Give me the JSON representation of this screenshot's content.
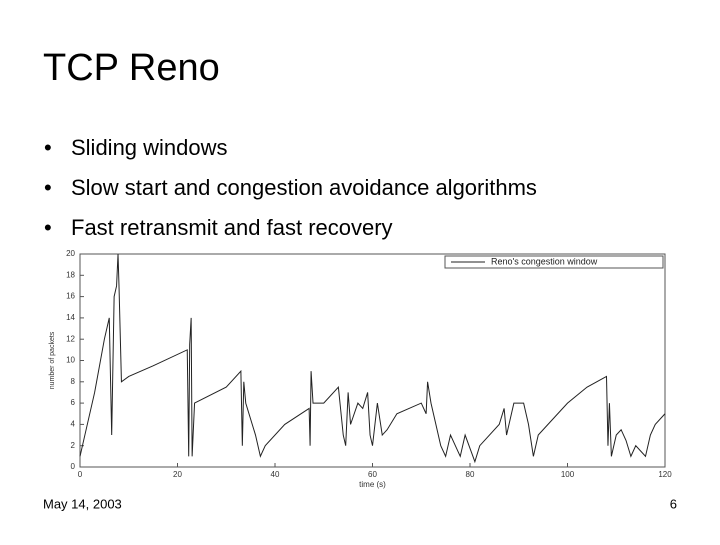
{
  "slide": {
    "title": "TCP Reno",
    "bullets": [
      "Sliding windows",
      "Slow start and congestion avoidance algorithms",
      "Fast retransmit and fast recovery"
    ],
    "footer": {
      "date": "May 14, 2003",
      "page": "6"
    }
  },
  "chart_data": {
    "type": "line",
    "x_label": "time (s)",
    "y_label": "number of packets",
    "xlim": [
      0,
      120
    ],
    "xticks": [
      0,
      20,
      40,
      60,
      80,
      100,
      120
    ],
    "ylim": [
      0,
      20
    ],
    "yticks": [
      0,
      2,
      4,
      6,
      8,
      10,
      12,
      14,
      16,
      18,
      20
    ],
    "legend": "top-right",
    "series": [
      {
        "name": "Reno's congestion window",
        "color": "#222222",
        "x": [
          0,
          1,
          3,
          5,
          6,
          6.5,
          7,
          7.5,
          7.8,
          8,
          8.5,
          10,
          15,
          22,
          22.3,
          22.5,
          22.8,
          23,
          23.5,
          30,
          33,
          33.3,
          33.6,
          34,
          36,
          37,
          38,
          42,
          47,
          47.2,
          47.4,
          47.8,
          50,
          53,
          54,
          54.5,
          55,
          55.5,
          57,
          58,
          59,
          59.5,
          60,
          61,
          62,
          63,
          65,
          70,
          71,
          71.3,
          72,
          73,
          74,
          75,
          76,
          77.5,
          78,
          79,
          81,
          82,
          86,
          87,
          87.5,
          89,
          91,
          92,
          93,
          94,
          96,
          100,
          104,
          108,
          108.3,
          108.6,
          109,
          110,
          111,
          112,
          113,
          114,
          115,
          116,
          117,
          118,
          120
        ],
        "values": [
          1,
          3,
          7,
          12,
          14,
          3,
          16,
          17,
          20,
          17,
          8,
          8.5,
          9.5,
          11,
          1,
          11.5,
          14,
          1,
          6,
          7.5,
          9,
          2,
          8,
          6,
          3,
          1,
          2,
          4,
          5.5,
          2,
          9,
          6,
          6,
          7.5,
          3,
          2,
          7,
          4,
          6,
          5.5,
          7,
          3,
          2,
          6,
          3,
          3.5,
          5,
          6,
          5,
          8,
          6,
          4,
          2,
          1,
          3,
          1.5,
          1,
          3,
          0.5,
          2,
          4,
          5.5,
          3,
          6,
          6,
          4,
          1,
          3,
          4,
          6,
          7.5,
          8.5,
          2,
          6,
          1,
          3,
          3.5,
          2.5,
          1,
          2,
          1.5,
          1,
          3,
          4,
          5
        ]
      }
    ]
  }
}
